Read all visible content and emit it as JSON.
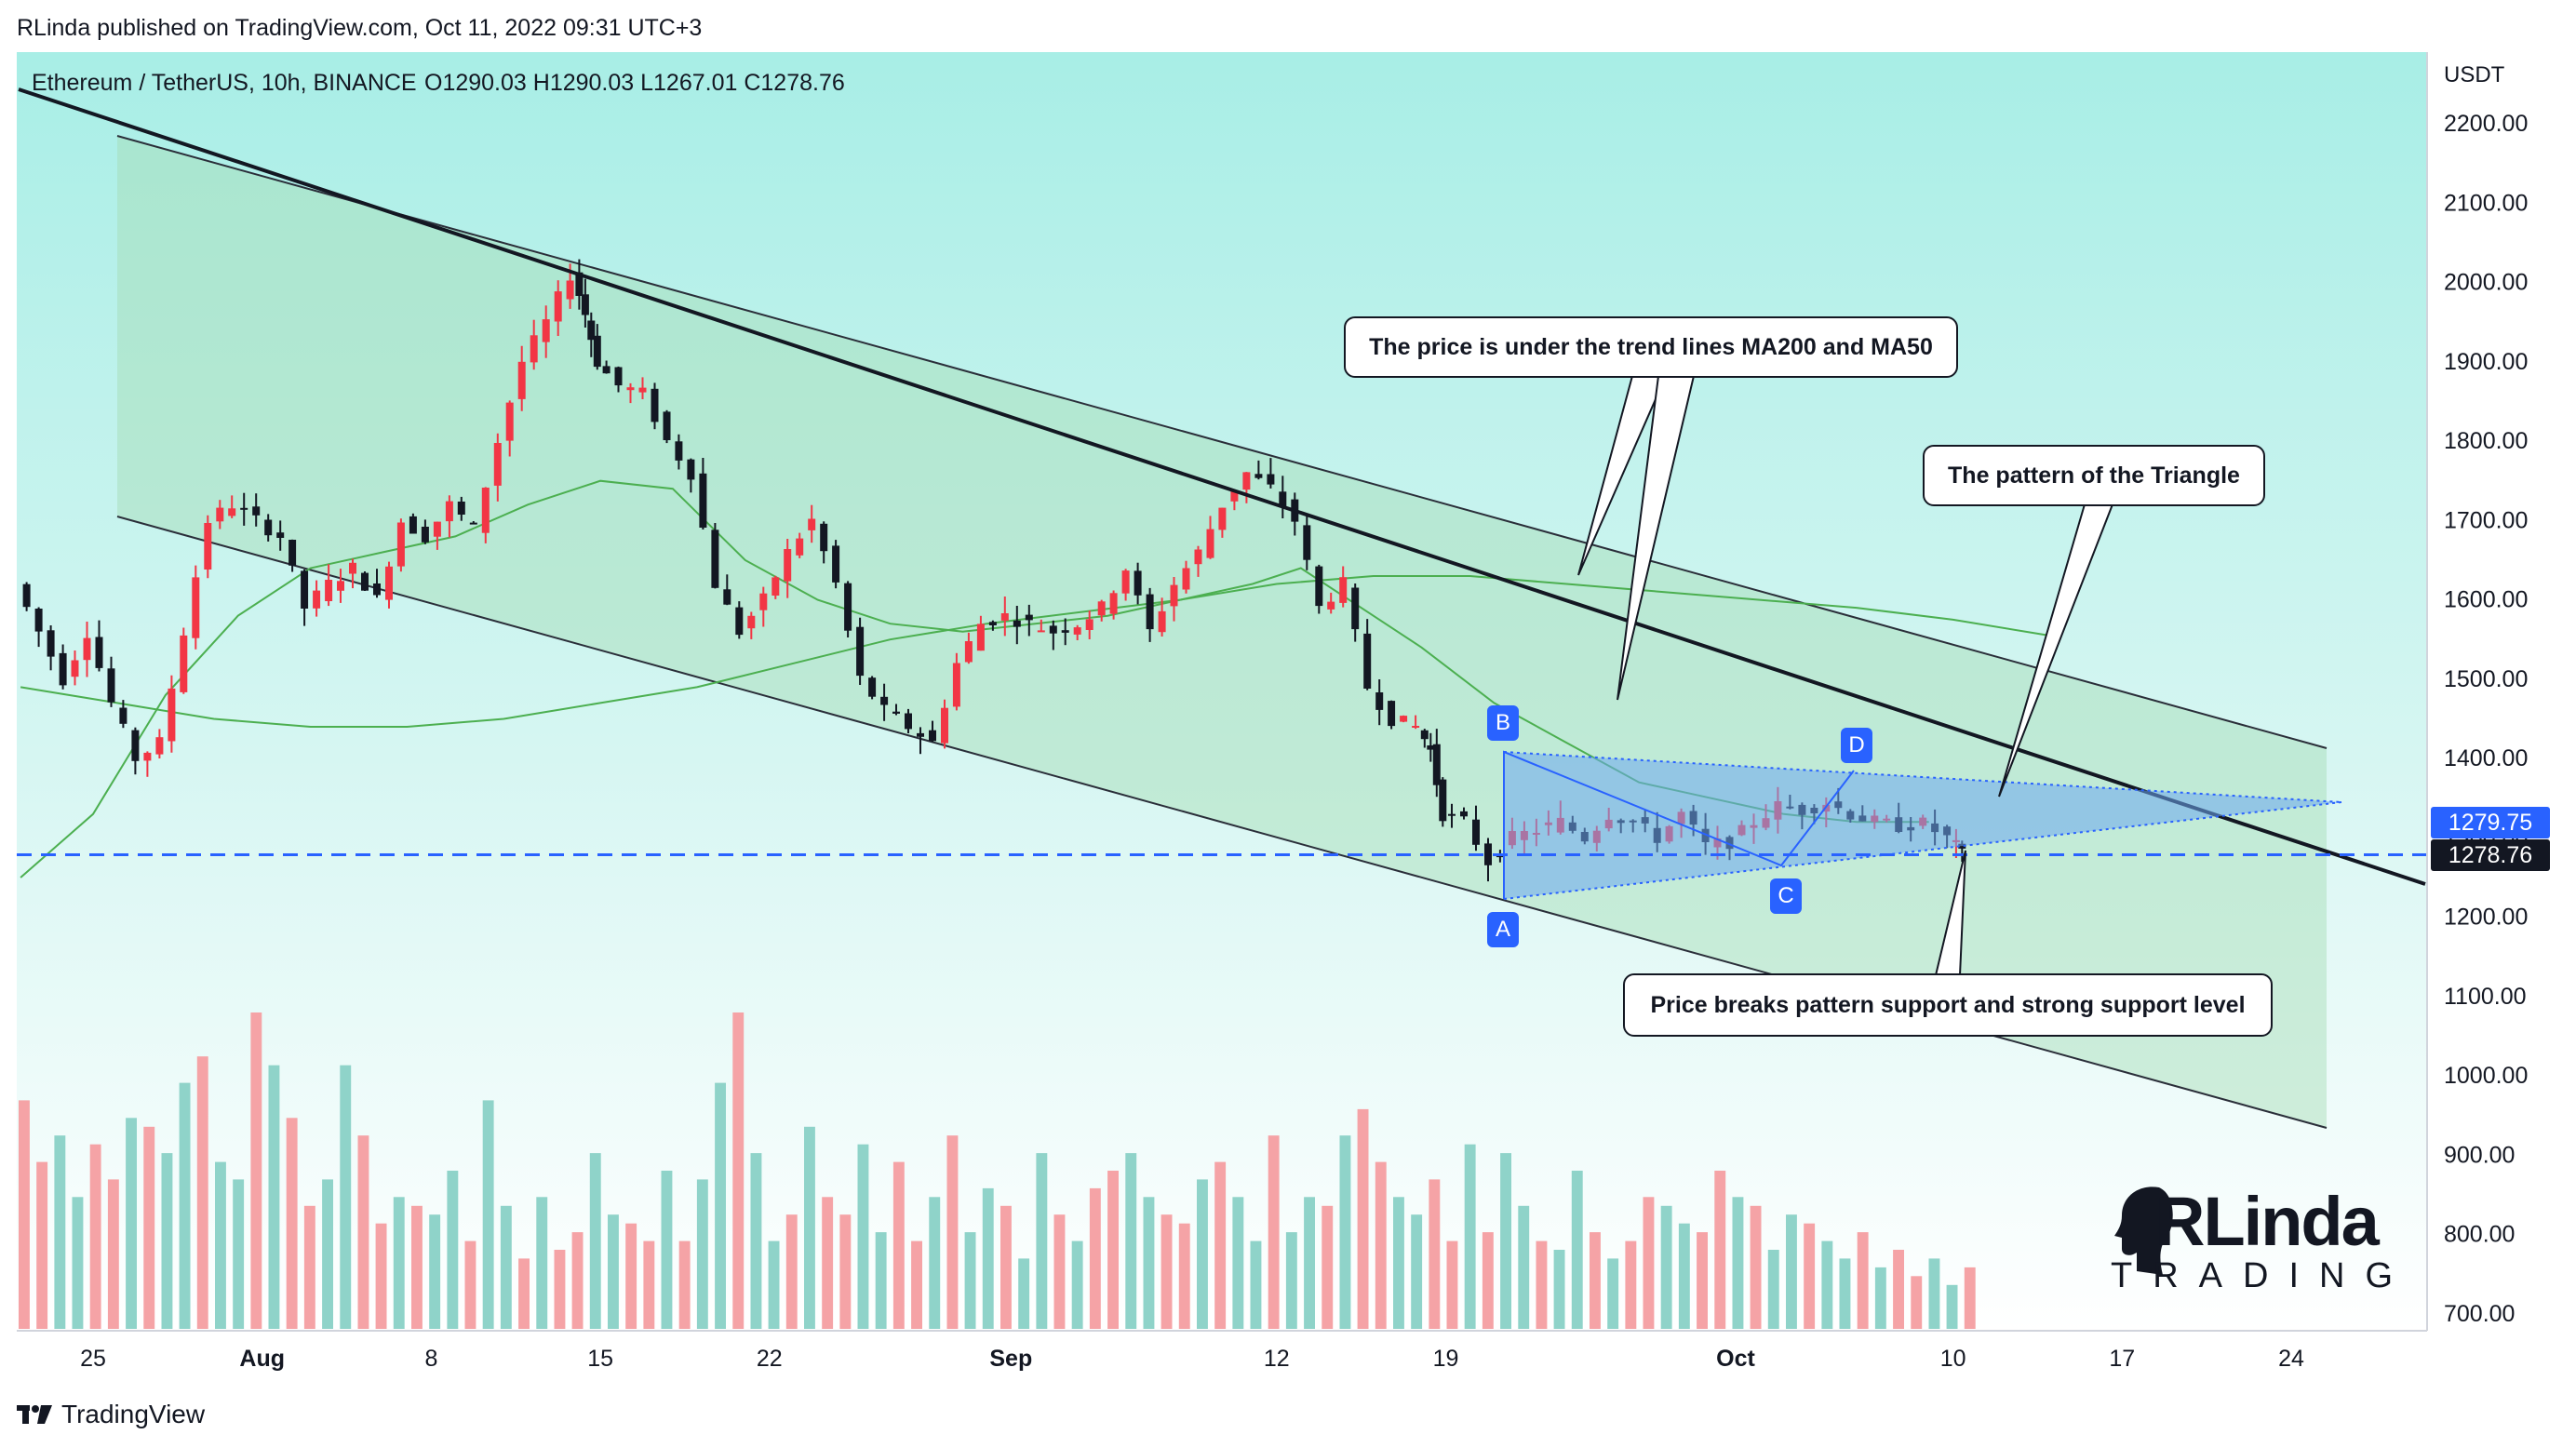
{
  "header": {
    "publisher": "RLinda published on TradingView.com, Oct 11, 2022 09:31 UTC+3"
  },
  "chart_data": {
    "type": "candlestick",
    "title": "Ethereum / TetherUS, 10h, BINANCE",
    "ohlc_text": "O1290.03  H1290.03  L1267.01  C1278.76",
    "yaxis_unit": "USDT",
    "ylim": [
      650,
      2300
    ],
    "y_ticks": [
      2200,
      2100,
      2000,
      1900,
      1800,
      1700,
      1600,
      1500,
      1400,
      1300,
      1200,
      1100,
      1000,
      900,
      800,
      700
    ],
    "y_tick_labels": [
      "2200.00",
      "2100.00",
      "2000.00",
      "1900.00",
      "1800.00",
      "1700.00",
      "1600.00",
      "1500.00",
      "1400.00",
      "1300.00",
      "1200.00",
      "1100.00",
      "1000.00",
      "900.00",
      "800.00",
      "700.00"
    ],
    "x_ticks": [
      {
        "label": "25",
        "day": 25
      },
      {
        "label": "Aug",
        "day": 32
      },
      {
        "label": "8",
        "day": 39
      },
      {
        "label": "15",
        "day": 46
      },
      {
        "label": "22",
        "day": 53
      },
      {
        "label": "Sep",
        "day": 63
      },
      {
        "label": "12",
        "day": 74
      },
      {
        "label": "19",
        "day": 81
      },
      {
        "label": "Oct",
        "day": 93
      },
      {
        "label": "10",
        "day": 102
      },
      {
        "label": "17",
        "day": 109
      },
      {
        "label": "24",
        "day": 116
      }
    ],
    "price_path": [
      [
        22,
        1620
      ],
      [
        23,
        1560
      ],
      [
        24,
        1500
      ],
      [
        25,
        1560
      ],
      [
        26,
        1470
      ],
      [
        27,
        1400
      ],
      [
        28,
        1420
      ],
      [
        29,
        1560
      ],
      [
        30,
        1700
      ],
      [
        31,
        1720
      ],
      [
        32,
        1700
      ],
      [
        33,
        1680
      ],
      [
        34,
        1590
      ],
      [
        35,
        1620
      ],
      [
        36,
        1640
      ],
      [
        37,
        1600
      ],
      [
        38,
        1700
      ],
      [
        39,
        1680
      ],
      [
        40,
        1720
      ],
      [
        41,
        1690
      ],
      [
        42,
        1800
      ],
      [
        43,
        1900
      ],
      [
        44,
        1950
      ],
      [
        45,
        2010
      ],
      [
        45.5,
        1960
      ],
      [
        46,
        1900
      ],
      [
        47,
        1870
      ],
      [
        48,
        1860
      ],
      [
        49,
        1800
      ],
      [
        50,
        1760
      ],
      [
        51,
        1620
      ],
      [
        52,
        1560
      ],
      [
        53,
        1600
      ],
      [
        54,
        1660
      ],
      [
        55,
        1700
      ],
      [
        56,
        1620
      ],
      [
        57,
        1500
      ],
      [
        58,
        1460
      ],
      [
        59,
        1440
      ],
      [
        60,
        1420
      ],
      [
        61,
        1520
      ],
      [
        62,
        1570
      ],
      [
        63,
        1580
      ],
      [
        64,
        1570
      ],
      [
        65,
        1560
      ],
      [
        66,
        1570
      ],
      [
        67,
        1590
      ],
      [
        68,
        1640
      ],
      [
        69,
        1560
      ],
      [
        70,
        1620
      ],
      [
        71,
        1660
      ],
      [
        72,
        1720
      ],
      [
        73,
        1760
      ],
      [
        74,
        1740
      ],
      [
        75,
        1700
      ],
      [
        76,
        1590
      ],
      [
        77,
        1620
      ],
      [
        78,
        1490
      ],
      [
        79,
        1450
      ],
      [
        80,
        1440
      ],
      [
        80.5,
        1410
      ],
      [
        81,
        1330
      ],
      [
        82,
        1320
      ],
      [
        83,
        1270
      ],
      [
        84,
        1300
      ],
      [
        85,
        1310
      ],
      [
        86,
        1320
      ],
      [
        87,
        1300
      ],
      [
        88,
        1330
      ],
      [
        89,
        1320
      ],
      [
        90,
        1300
      ],
      [
        91,
        1330
      ],
      [
        92,
        1290
      ],
      [
        93,
        1295
      ],
      [
        94,
        1320
      ],
      [
        95,
        1340
      ],
      [
        96,
        1335
      ],
      [
        97,
        1345
      ],
      [
        98,
        1330
      ],
      [
        99,
        1320
      ],
      [
        100,
        1315
      ],
      [
        101,
        1318
      ],
      [
        102,
        1300
      ],
      [
        102.5,
        1278.76
      ]
    ],
    "ma50": [
      [
        22,
        1250
      ],
      [
        25,
        1330
      ],
      [
        28,
        1480
      ],
      [
        31,
        1580
      ],
      [
        34,
        1640
      ],
      [
        37,
        1660
      ],
      [
        40,
        1680
      ],
      [
        43,
        1720
      ],
      [
        46,
        1750
      ],
      [
        49,
        1740
      ],
      [
        52,
        1650
      ],
      [
        55,
        1600
      ],
      [
        58,
        1570
      ],
      [
        61,
        1560
      ],
      [
        64,
        1570
      ],
      [
        67,
        1580
      ],
      [
        70,
        1600
      ],
      [
        73,
        1620
      ],
      [
        75,
        1640
      ],
      [
        77,
        1600
      ],
      [
        80,
        1540
      ],
      [
        83,
        1470
      ],
      [
        86,
        1420
      ],
      [
        89,
        1370
      ],
      [
        92,
        1350
      ],
      [
        95,
        1330
      ],
      [
        98,
        1320
      ],
      [
        101,
        1320
      ]
    ],
    "ma200": [
      [
        22,
        1490
      ],
      [
        26,
        1470
      ],
      [
        30,
        1450
      ],
      [
        34,
        1440
      ],
      [
        38,
        1440
      ],
      [
        42,
        1450
      ],
      [
        46,
        1470
      ],
      [
        50,
        1490
      ],
      [
        54,
        1520
      ],
      [
        58,
        1550
      ],
      [
        62,
        1570
      ],
      [
        66,
        1585
      ],
      [
        70,
        1600
      ],
      [
        74,
        1620
      ],
      [
        78,
        1630
      ],
      [
        82,
        1630
      ],
      [
        86,
        1620
      ],
      [
        90,
        1610
      ],
      [
        94,
        1600
      ],
      [
        98,
        1590
      ],
      [
        102,
        1575
      ],
      [
        106,
        1555
      ]
    ],
    "current_price": "1278.76",
    "price_tags": [
      "1279.75",
      "1278.76"
    ],
    "pattern_points": [
      "A",
      "B",
      "C",
      "D"
    ],
    "volume": [
      0.52,
      0.38,
      0.44,
      0.3,
      0.42,
      0.34,
      0.48,
      0.46,
      0.4,
      0.56,
      0.62,
      0.38,
      0.34,
      0.72,
      0.6,
      0.48,
      0.28,
      0.34,
      0.6,
      0.44,
      0.24,
      0.3,
      0.28,
      0.26,
      0.36,
      0.2,
      0.52,
      0.28,
      0.16,
      0.3,
      0.18,
      0.22,
      0.4,
      0.26,
      0.24,
      0.2,
      0.36,
      0.2,
      0.34,
      0.56,
      0.72,
      0.4,
      0.2,
      0.26,
      0.46,
      0.3,
      0.26,
      0.42,
      0.22,
      0.38,
      0.2,
      0.3,
      0.44,
      0.22,
      0.32,
      0.28,
      0.16,
      0.4,
      0.26,
      0.2,
      0.32,
      0.36,
      0.4,
      0.3,
      0.26,
      0.24,
      0.34,
      0.38,
      0.3,
      0.2,
      0.44,
      0.22,
      0.3,
      0.28,
      0.44,
      0.5,
      0.38,
      0.3,
      0.26,
      0.34,
      0.2,
      0.42,
      0.22,
      0.4,
      0.28,
      0.2,
      0.18,
      0.36,
      0.22,
      0.16,
      0.2,
      0.3,
      0.28,
      0.24,
      0.22,
      0.36,
      0.3,
      0.28,
      0.18,
      0.26,
      0.24,
      0.2,
      0.16,
      0.22,
      0.14,
      0.18,
      0.12,
      0.16,
      0.1,
      0.14
    ],
    "volume_colors": {
      "up": "#8fd3c9",
      "down": "#f5a3a6"
    }
  },
  "annotations": {
    "ma_callout": "The price is under the trend lines MA200 and MA50",
    "triangle_callout": "The pattern of the Triangle",
    "break_callout": "Price breaks pattern support and strong support level"
  },
  "colors": {
    "bg_top": "#a8eee6",
    "bg_bottom": "#ffffff",
    "channel_fill": "#a5dcb4",
    "triangle_fill": "#6ea8f0",
    "accent_blue": "#2962ff",
    "candle_up": "#f23645",
    "candle_down": "#131722",
    "ma_green": "#4caf50"
  },
  "branding": {
    "logo_main": "RLinda",
    "logo_sub": "TRADING"
  },
  "footer": {
    "tv_label": "TradingView"
  }
}
